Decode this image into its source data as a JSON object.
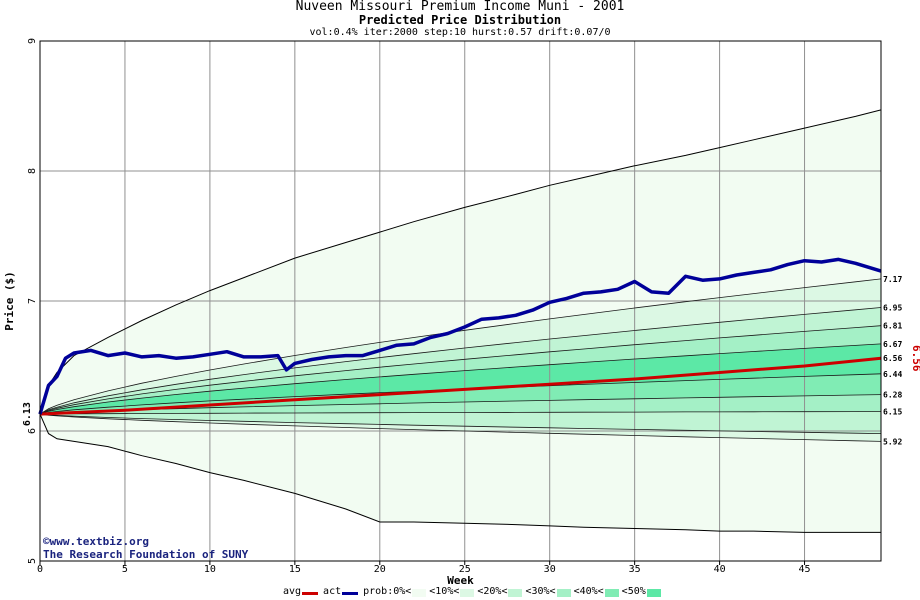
{
  "header": {
    "title": "Nuveen Missouri Premium Income Muni - 2001",
    "subtitle": "Predicted Price Distribution",
    "params": "vol:0.4% iter:2000 step:10 hurst:0.57 drift:0.07/0"
  },
  "credit": {
    "line1": "©www.textbiz.org",
    "line2": "The Research Foundation of SUNY"
  },
  "colors": {
    "avg": "#cc0000",
    "act": "#000099",
    "band_0": "#f2fcf2",
    "band_10": "#dcf8e4",
    "band_20": "#c0f4d4",
    "band_30": "#a4f0c6",
    "band_40": "#80ecb4",
    "band_50": "#5ce8a6"
  },
  "legend": [
    {
      "label": "avg",
      "kind": "line",
      "color": "#cc0000"
    },
    {
      "label": "act",
      "kind": "line",
      "color": "#000099"
    },
    {
      "label": "prob:0%<",
      "kind": "swatch",
      "color": "#f2fcf2"
    },
    {
      "label": "<10%<",
      "kind": "swatch",
      "color": "#dcf8e4"
    },
    {
      "label": "<20%<",
      "kind": "swatch",
      "color": "#c0f4d4"
    },
    {
      "label": "<30%<",
      "kind": "swatch",
      "color": "#a4f0c6"
    },
    {
      "label": "<40%<",
      "kind": "swatch",
      "color": "#80ecb4"
    },
    {
      "label": "<50%",
      "kind": "swatch",
      "color": "#5ce8a6"
    }
  ],
  "chart_data": {
    "type": "area",
    "title": "Nuveen Missouri Premium Income Muni - 2001",
    "subtitle": "Predicted Price Distribution",
    "xlabel": "Week",
    "ylabel": "Price ($)",
    "xlim": [
      0,
      49.5
    ],
    "ylim": [
      5,
      9
    ],
    "x_ticks": [
      0,
      5,
      10,
      15,
      20,
      25,
      30,
      35,
      40,
      45
    ],
    "y_ticks": [
      5,
      6,
      7,
      8,
      9
    ],
    "grid": true,
    "start_value": 6.13,
    "start_label": "6.13",
    "end_avg_label": "6.56",
    "right_labels": [
      {
        "value": 7.17,
        "text": "7.17"
      },
      {
        "value": 6.95,
        "text": "6.95"
      },
      {
        "value": 6.81,
        "text": "6.81"
      },
      {
        "value": 6.67,
        "text": "6.67"
      },
      {
        "value": 6.56,
        "text": "6.56"
      },
      {
        "value": 6.44,
        "text": "6.44"
      },
      {
        "value": 6.28,
        "text": "6.28"
      },
      {
        "value": 6.15,
        "text": "6.15"
      },
      {
        "value": 5.92,
        "text": "5.92"
      }
    ],
    "bands": {
      "x": [
        0,
        0.5,
        1,
        2,
        4,
        6,
        8,
        10,
        12,
        15,
        18,
        20,
        22,
        25,
        28,
        30,
        32,
        35,
        38,
        40,
        42,
        45,
        48,
        49.5
      ],
      "outer_upper": [
        6.13,
        6.35,
        6.45,
        6.58,
        6.72,
        6.85,
        6.97,
        7.08,
        7.18,
        7.33,
        7.45,
        7.53,
        7.61,
        7.72,
        7.82,
        7.89,
        7.95,
        8.04,
        8.12,
        8.18,
        8.24,
        8.33,
        8.42,
        8.47
      ],
      "outer_lower": [
        6.13,
        5.98,
        5.94,
        5.92,
        5.88,
        5.81,
        5.75,
        5.68,
        5.62,
        5.52,
        5.4,
        5.3,
        5.3,
        5.29,
        5.28,
        5.27,
        5.26,
        5.25,
        5.24,
        5.23,
        5.23,
        5.22,
        5.22,
        5.22
      ],
      "quantiles": [
        {
          "name": "q10_upper",
          "start": 6.13,
          "end": 7.17
        },
        {
          "name": "q20_upper",
          "start": 6.13,
          "end": 6.95
        },
        {
          "name": "q30_upper",
          "start": 6.13,
          "end": 6.81
        },
        {
          "name": "q40_upper",
          "start": 6.13,
          "end": 6.67
        },
        {
          "name": "q40_lower",
          "start": 6.13,
          "end": 6.44
        },
        {
          "name": "q30_lower",
          "start": 6.13,
          "end": 6.28
        },
        {
          "name": "q20_lower",
          "start": 6.13,
          "end": 6.15
        },
        {
          "name": "q10_lower",
          "start": 6.13,
          "end": 5.98
        },
        {
          "name": "q0_lower",
          "start": 6.13,
          "end": 5.92
        }
      ]
    },
    "series": [
      {
        "name": "avg",
        "x": [
          0,
          5,
          10,
          15,
          20,
          25,
          30,
          35,
          40,
          45,
          49.5
        ],
        "values": [
          6.13,
          6.16,
          6.2,
          6.24,
          6.28,
          6.32,
          6.36,
          6.4,
          6.45,
          6.5,
          6.56
        ]
      },
      {
        "name": "act",
        "x": [
          0,
          0.5,
          1,
          1.5,
          2,
          3,
          4,
          5,
          6,
          7,
          8,
          9,
          10,
          11,
          12,
          13,
          14,
          14.5,
          15,
          16,
          17,
          18,
          19,
          20,
          21,
          22,
          23,
          24,
          25,
          26,
          27,
          28,
          29,
          30,
          31,
          32,
          33,
          34,
          35,
          36,
          37,
          38,
          39,
          40,
          41,
          42,
          43,
          44,
          45,
          46,
          47,
          48,
          49.5
        ],
        "values": [
          6.13,
          6.35,
          6.42,
          6.56,
          6.6,
          6.62,
          6.58,
          6.6,
          6.57,
          6.58,
          6.56,
          6.57,
          6.59,
          6.61,
          6.57,
          6.57,
          6.58,
          6.47,
          6.52,
          6.55,
          6.57,
          6.58,
          6.58,
          6.62,
          6.66,
          6.67,
          6.72,
          6.75,
          6.8,
          6.86,
          6.87,
          6.89,
          6.93,
          6.99,
          7.02,
          7.06,
          7.07,
          7.09,
          7.15,
          7.07,
          7.06,
          7.19,
          7.16,
          7.17,
          7.2,
          7.22,
          7.24,
          7.28,
          7.31,
          7.3,
          7.32,
          7.29,
          7.23
        ]
      }
    ]
  }
}
